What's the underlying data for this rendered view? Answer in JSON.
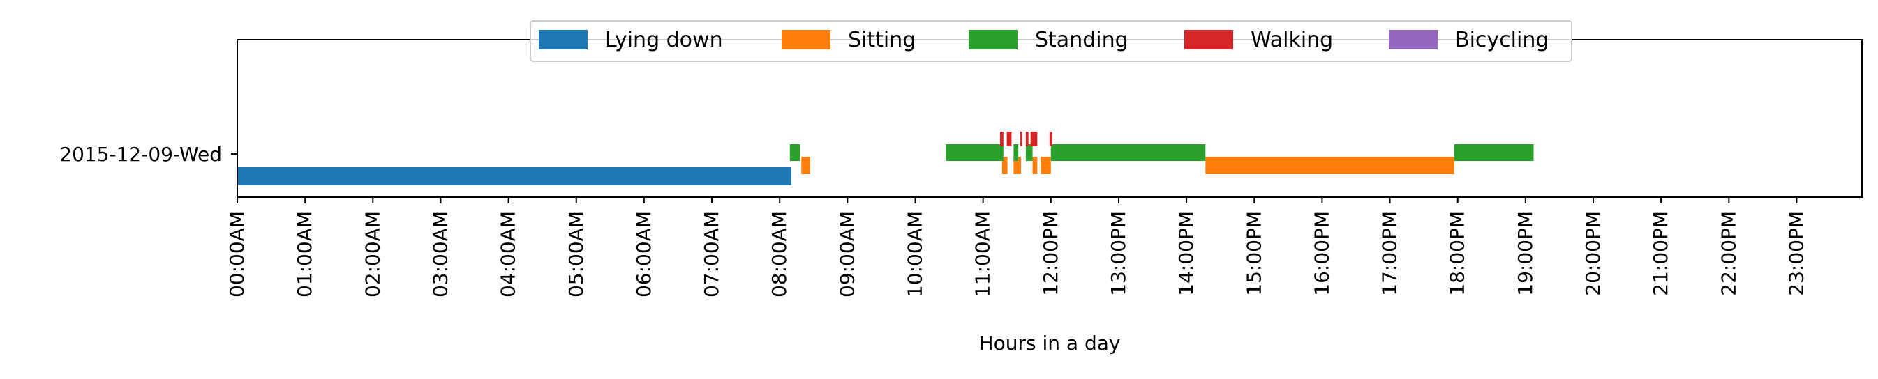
{
  "chart_data": {
    "type": "timeline",
    "xlabel": "Hours in a day",
    "ylabel": "",
    "xlim": [
      0,
      24
    ],
    "grid": false,
    "legend_position": "top-center",
    "rows": [
      "2015-12-09-Wed"
    ],
    "tick_labels": [
      "00:00AM",
      "01:00AM",
      "02:00AM",
      "03:00AM",
      "04:00AM",
      "05:00AM",
      "06:00AM",
      "07:00AM",
      "08:00AM",
      "09:00AM",
      "10:00AM",
      "11:00AM",
      "12:00PM",
      "13:00PM",
      "14:00PM",
      "15:00PM",
      "16:00PM",
      "17:00PM",
      "18:00PM",
      "19:00PM",
      "20:00PM",
      "21:00PM",
      "22:00PM",
      "23:00PM"
    ],
    "series": [
      {
        "name": "Lying down",
        "color": "#1f77b4",
        "lane": 0,
        "intervals": [
          [
            0.0,
            8.17
          ]
        ]
      },
      {
        "name": "Sitting",
        "color": "#ff7f0e",
        "lane": 1,
        "intervals": [
          [
            8.32,
            8.45
          ],
          [
            11.28,
            11.36
          ],
          [
            11.45,
            11.56
          ],
          [
            11.73,
            11.8
          ],
          [
            11.85,
            12.0
          ],
          [
            14.28,
            17.95
          ]
        ]
      },
      {
        "name": "Standing",
        "color": "#2ca02c",
        "lane": 2,
        "intervals": [
          [
            8.15,
            8.3
          ],
          [
            10.45,
            11.3
          ],
          [
            11.45,
            11.52
          ],
          [
            11.63,
            11.73
          ],
          [
            12.0,
            14.28
          ],
          [
            17.95,
            19.12
          ]
        ]
      },
      {
        "name": "Walking",
        "color": "#d62728",
        "lane": 3,
        "intervals": [
          [
            11.25,
            11.3
          ],
          [
            11.35,
            11.42
          ],
          [
            11.55,
            11.58
          ],
          [
            11.63,
            11.67
          ],
          [
            11.7,
            11.8
          ],
          [
            11.98,
            12.02
          ]
        ]
      },
      {
        "name": "Bicycling",
        "color": "#9467bd",
        "lane": 4,
        "intervals": []
      }
    ]
  }
}
